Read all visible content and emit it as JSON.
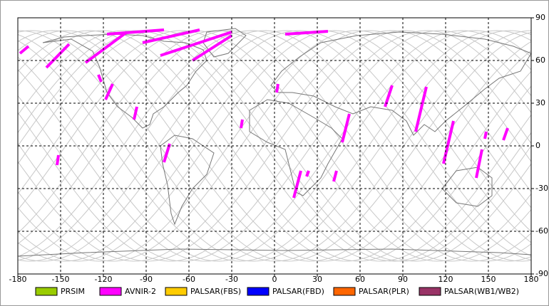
{
  "chart_data": {
    "type": "map",
    "xlim": [
      -180,
      180
    ],
    "ylim": [
      -90,
      90
    ],
    "xticks": [
      -180,
      -150,
      -120,
      -90,
      -60,
      -30,
      0,
      30,
      60,
      90,
      120,
      150,
      180
    ],
    "yticks": [
      -90,
      -60,
      -30,
      0,
      30,
      60,
      90
    ],
    "grid": true,
    "series": [
      {
        "name": "PRSIM",
        "color": "#99cc00"
      },
      {
        "name": "AVNIR-2",
        "color": "#ff00ff",
        "segments": [
          [
            -178.5,
            65,
            -172.5,
            70
          ],
          [
            -160,
            55,
            -144,
            71.5
          ],
          [
            -132.5,
            58.5,
            -103.5,
            80
          ],
          [
            -92.5,
            72.5,
            -52.5,
            81.5
          ],
          [
            -80,
            63.5,
            -30,
            80
          ],
          [
            -57.5,
            60,
            -30,
            77.5
          ],
          [
            -117.5,
            78.5,
            -77.5,
            81.5
          ],
          [
            7.5,
            78.5,
            37.5,
            80.5
          ],
          [
            -123.5,
            50,
            -121.5,
            45
          ],
          [
            -118.5,
            32.5,
            -113.5,
            43.5
          ],
          [
            -98.5,
            18.5,
            -96.5,
            27.5
          ],
          [
            -77.5,
            -11.5,
            -73.5,
            1.5
          ],
          [
            -152.5,
            -13.5,
            -151.5,
            -6.5
          ],
          [
            -23.5,
            12.5,
            -22.5,
            18.5
          ],
          [
            1.5,
            37.5,
            2.5,
            43.5
          ],
          [
            13.5,
            -36.5,
            18.5,
            -17.5
          ],
          [
            41.5,
            -25,
            43.5,
            -17.5
          ],
          [
            47.5,
            2.5,
            52.5,
            22.5
          ],
          [
            77.5,
            27.5,
            82.5,
            42.5
          ],
          [
            99,
            10,
            106.5,
            41.5
          ],
          [
            118.5,
            -12.5,
            125.5,
            17.5
          ],
          [
            141.5,
            -22.5,
            145.5,
            -2.5
          ],
          [
            147.5,
            5,
            148.5,
            10
          ],
          [
            160.5,
            4,
            163.5,
            12.5
          ],
          [
            22.5,
            -21.5,
            24,
            -17.5
          ]
        ]
      },
      {
        "name": "PALSAR(FBS)",
        "color": "#ffcc00"
      },
      {
        "name": "PALSAR(FBD)",
        "color": "#0000ff"
      },
      {
        "name": "PALSAR(PLR)",
        "color": "#ff6600"
      },
      {
        "name": "PALSAR(WB1/WB2)",
        "color": "#993366"
      }
    ]
  }
}
